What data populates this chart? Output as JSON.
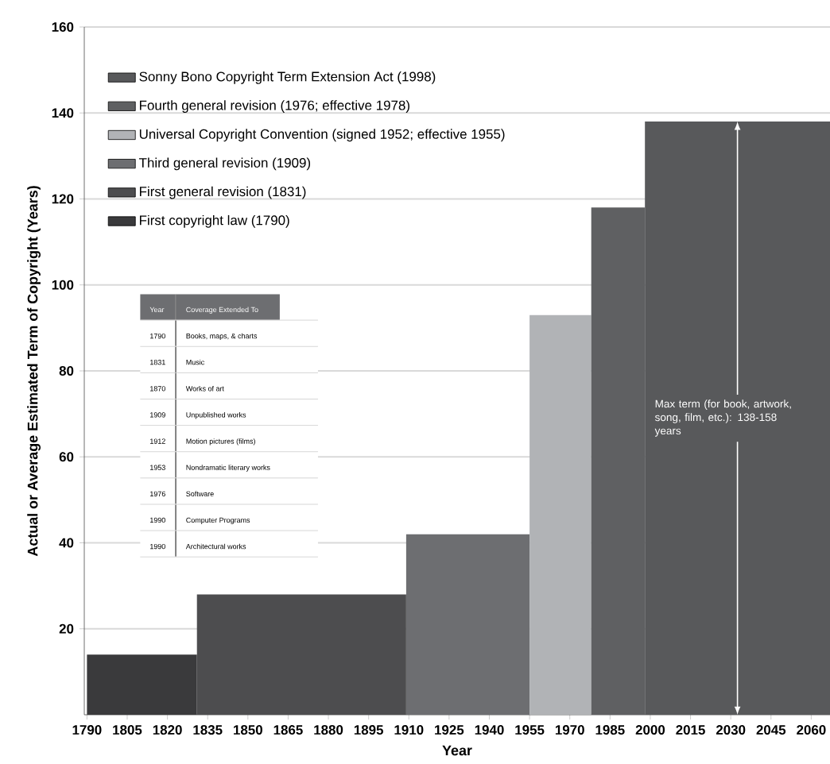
{
  "chart_data": {
    "type": "area",
    "xlabel": "Year",
    "ylabel": "Actual or Average Estimated Term of Copyright (Years)",
    "series": [
      {
        "name": "First copyright law (1790)",
        "color": "#3a3a3c",
        "x": [
          1790,
          1831
        ],
        "values": [
          14,
          14
        ]
      },
      {
        "name": "First general revision (1831)",
        "color": "#4d4d4f",
        "x": [
          1831,
          1909
        ],
        "values": [
          28,
          28
        ]
      },
      {
        "name": "Third general revision (1909)",
        "color": "#6d6e71",
        "x": [
          1909,
          1955
        ],
        "values": [
          42,
          42
        ]
      },
      {
        "name": "Universal Copyright Convention (signed 1952; effective 1955)",
        "color": "#b1b3b6",
        "x": [
          1955,
          1978
        ],
        "values": [
          93,
          93
        ]
      },
      {
        "name": "Fourth general revision (1976; effective 1978)",
        "color": "#5f6062",
        "x": [
          1978,
          1998
        ],
        "values": [
          118,
          118
        ]
      },
      {
        "name": "Sonny Bono Copyright Term Extension Act (1998)",
        "color": "#58595b",
        "x": [
          1998,
          2067
        ],
        "values": [
          138,
          138
        ]
      }
    ],
    "xlim": [
      1789,
      2067
    ],
    "ylim": [
      0,
      160
    ],
    "xticks": [
      1790,
      1805,
      1820,
      1835,
      1850,
      1865,
      1880,
      1895,
      1910,
      1925,
      1940,
      1955,
      1970,
      1985,
      2000,
      2015,
      2030,
      2045,
      2060
    ],
    "yticks": [
      20,
      40,
      60,
      80,
      100,
      120,
      140,
      160
    ],
    "grid": "y",
    "legend": "top left",
    "annotations": [
      "Year",
      "Coverage Extended To",
      "1790",
      "Books, maps, & charts",
      "1831",
      "Music",
      "1870",
      "Works of art",
      "1909",
      "Unpublished works",
      "1912",
      "Motion pictures (films)",
      "1953",
      "Nondramatic literary works",
      "1976",
      "Software",
      "1990",
      "Computer Programs",
      "1990",
      "Architectural works",
      "Max term (for book, artwork, song, film, etc.): 138-158 years"
    ]
  }
}
